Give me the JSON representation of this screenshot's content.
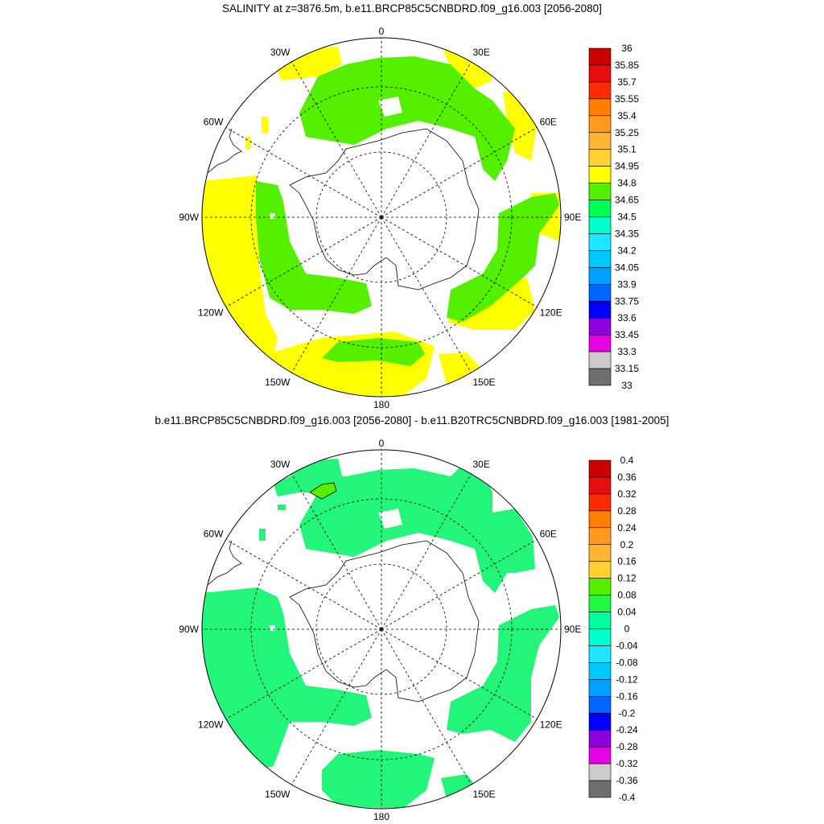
{
  "panel1": {
    "title": "SALINITY at z=3876.5m, b.e11.BRCP85C5CNBDRD.f09_g16.003 [2056-2080]",
    "lon_labels": [
      "0",
      "30E",
      "60E",
      "90E",
      "120E",
      "150E",
      "180",
      "150W",
      "120W",
      "90W",
      "60W",
      "30W"
    ],
    "colorbar": {
      "labels": [
        "36",
        "35.85",
        "35.7",
        "35.55",
        "35.4",
        "35.25",
        "35.1",
        "34.95",
        "34.8",
        "34.65",
        "34.5",
        "34.35",
        "34.2",
        "34.05",
        "33.9",
        "33.75",
        "33.6",
        "33.45",
        "33.3",
        "33.15",
        "33"
      ],
      "colors": [
        "#c80000",
        "#e60f0f",
        "#ff2a00",
        "#ff7f00",
        "#ff9a1e",
        "#ffb432",
        "#ffd232",
        "#ffff00",
        "#55f000",
        "#00ff55",
        "#00ffcc",
        "#1ee6ff",
        "#00c8ff",
        "#00a0ff",
        "#0064ff",
        "#0000ff",
        "#8c00dc",
        "#e600e6",
        "#cccccc",
        "#6e6e6e"
      ]
    }
  },
  "panel2": {
    "title": "b.e11.BRCP85C5CNBDRD.f09_g16.003 [2056-2080] - b.e11.B20TRC5CNBDRD.f09_g16.003 [1981-2005]",
    "lon_labels": [
      "0",
      "30E",
      "60E",
      "90E",
      "120E",
      "150E",
      "180",
      "150W",
      "120W",
      "90W",
      "60W",
      "30W"
    ],
    "colorbar": {
      "labels": [
        "0.4",
        "0.36",
        "0.32",
        "0.28",
        "0.24",
        "0.2",
        "0.16",
        "0.12",
        "0.08",
        "0.04",
        "0",
        "-0.04",
        "-0.08",
        "-0.12",
        "-0.16",
        "-0.2",
        "-0.24",
        "-0.28",
        "-0.32",
        "-0.36",
        "-0.4"
      ],
      "colors": [
        "#c80000",
        "#e60f0f",
        "#ff2a00",
        "#ff7f00",
        "#ff9a1e",
        "#ffb432",
        "#ffd232",
        "#55f000",
        "#22f844",
        "#00ffa0",
        "#00ffcc",
        "#1ee6ff",
        "#00c8ff",
        "#00a0ff",
        "#0064ff",
        "#0000ff",
        "#8c00dc",
        "#e600e6",
        "#cccccc",
        "#6e6e6e"
      ]
    }
  },
  "colors": {
    "yellow": "#ffff00",
    "green_bright": "#55f000",
    "green_mid": "#22f57a"
  }
}
